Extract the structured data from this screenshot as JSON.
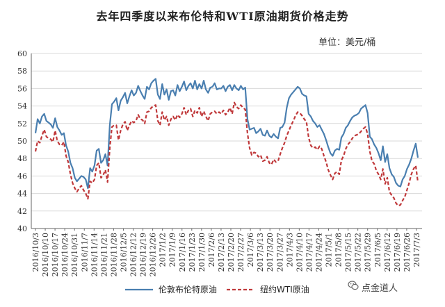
{
  "chart_data": {
    "type": "line",
    "title": "去年四季度以来布伦特和WTI原油期货价格走势",
    "unit_note": "单位：美元/桶",
    "ylim": [
      40,
      60
    ],
    "yticks": [
      40,
      42,
      44,
      46,
      48,
      50,
      52,
      54,
      56,
      58,
      60
    ],
    "xtick_labels": [
      "2016/10/3",
      "2016/10/10",
      "2016/10/17",
      "2016/10/24",
      "2016/10/31",
      "2016/11/7",
      "2016/11/14",
      "2016/11/21",
      "2016/11/28",
      "2016/12/5",
      "2016/12/12",
      "2016/12/19",
      "2016/12/26",
      "2017/1/2",
      "2017/1/9",
      "2017/1/16",
      "2017/1/23",
      "2017/1/30",
      "2017/2/6",
      "2017/2/13",
      "2017/2/20",
      "2017/2/27",
      "2017/3/6",
      "2017/3/13",
      "2017/3/20",
      "2017/3/27",
      "2017/4/3",
      "2017/4/10",
      "2017/4/17",
      "2017/4/24",
      "2017/5/1",
      "2017/5/8",
      "2017/5/15",
      "2017/5/22",
      "2017/5/29",
      "2017/6/5",
      "2017/6/12",
      "2017/6/19",
      "2017/6/26",
      "2017/7/3"
    ],
    "series": [
      {
        "name": "伦敦布伦特原油",
        "color": "#4a7fb0",
        "style": "solid",
        "values": [
          50.9,
          52.5,
          52.0,
          52.8,
          53.1,
          52.3,
          52.1,
          51.9,
          51.5,
          52.6,
          51.6,
          51.2,
          50.7,
          50.9,
          49.5,
          48.8,
          47.5,
          46.9,
          45.8,
          45.4,
          45.7,
          46.0,
          45.9,
          45.6,
          44.6,
          46.9,
          46.5,
          47.2,
          48.9,
          49.1,
          47.5,
          47.8,
          48.5,
          47.2,
          51.8,
          54.2,
          54.5,
          54.9,
          53.5,
          54.6,
          55.0,
          55.5,
          54.3,
          55.1,
          55.8,
          55.2,
          55.5,
          56.3,
          55.7,
          55.2,
          54.8,
          56.2,
          55.9,
          56.6,
          56.9,
          57.1,
          55.3,
          54.8,
          56.5,
          55.3,
          55.9,
          54.7,
          55.7,
          55.8,
          55.2,
          56.4,
          55.7,
          56.2,
          56.8,
          55.8,
          56.3,
          56.6,
          56.0,
          56.9,
          55.9,
          56.5,
          56.0,
          56.9,
          55.9,
          55.5,
          56.1,
          56.2,
          56.6,
          55.9,
          56.0,
          56.0,
          56.3,
          55.7,
          56.2,
          56.4,
          55.8,
          56.4,
          56.0,
          55.8,
          56.3,
          55.9,
          56.1,
          52.5,
          51.3,
          51.4,
          51.5,
          50.9,
          51.1,
          51.4,
          50.7,
          50.6,
          51.2,
          50.6,
          50.4,
          50.8,
          50.5,
          50.3,
          51.5,
          51.6,
          52.1,
          53.8,
          54.9,
          55.3,
          55.6,
          55.9,
          56.2,
          56.0,
          55.4,
          55.2,
          55.1,
          53.1,
          52.8,
          52.3,
          52.0,
          51.6,
          51.8,
          51.3,
          50.8,
          50.1,
          49.3,
          48.6,
          48.3,
          48.9,
          49.1,
          49.0,
          50.4,
          50.8,
          51.5,
          51.8,
          52.3,
          52.7,
          52.9,
          53.0,
          53.2,
          53.7,
          53.9,
          54.1,
          53.2,
          50.5,
          50.2,
          49.6,
          49.2,
          48.6,
          47.8,
          49.4,
          47.6,
          48.5,
          46.9,
          46.2,
          45.9,
          45.2,
          44.9,
          44.8,
          45.6,
          46.0,
          46.8,
          47.3,
          48.0,
          48.9,
          49.7,
          48.1
        ]
      },
      {
        "name": "纽约WTI原油",
        "color": "#c0393b",
        "style": "dashed",
        "values": [
          48.8,
          50.0,
          49.8,
          50.6,
          51.3,
          50.5,
          50.3,
          50.2,
          49.9,
          51.2,
          50.0,
          49.6,
          49.5,
          49.9,
          48.3,
          47.6,
          46.2,
          45.2,
          44.6,
          44.2,
          44.6,
          44.9,
          44.4,
          44.0,
          43.4,
          45.4,
          45.2,
          45.6,
          47.2,
          47.5,
          45.8,
          46.1,
          46.7,
          45.3,
          49.2,
          51.6,
          51.8,
          51.8,
          50.1,
          51.2,
          51.9,
          52.2,
          51.2,
          51.8,
          52.3,
          52.1,
          52.3,
          53.0,
          52.5,
          52.4,
          52.0,
          53.3,
          53.4,
          53.8,
          54.0,
          54.1,
          52.3,
          51.8,
          53.3,
          52.4,
          52.8,
          51.8,
          52.5,
          52.8,
          52.4,
          53.0,
          52.7,
          53.1,
          53.8,
          53.0,
          53.5,
          53.7,
          52.8,
          53.5,
          53.2,
          53.8,
          52.8,
          53.4,
          52.8,
          52.3,
          53.1,
          53.3,
          53.4,
          53.1,
          53.3,
          53.1,
          53.5,
          53.0,
          53.3,
          53.8,
          53.1,
          54.4,
          53.9,
          53.7,
          54.1,
          53.8,
          53.6,
          50.9,
          49.2,
          48.4,
          48.7,
          48.6,
          48.2,
          48.4,
          47.7,
          47.8,
          48.2,
          47.5,
          47.3,
          47.9,
          47.6,
          47.7,
          48.5,
          49.2,
          49.8,
          50.6,
          51.2,
          51.8,
          52.3,
          52.9,
          53.3,
          53.2,
          52.9,
          52.5,
          52.2,
          50.4,
          49.5,
          49.2,
          49.3,
          49.0,
          49.4,
          49.1,
          48.3,
          47.6,
          46.7,
          46.1,
          45.6,
          46.3,
          46.5,
          46.2,
          47.8,
          48.3,
          49.1,
          49.6,
          49.9,
          50.3,
          50.6,
          50.7,
          50.8,
          51.1,
          51.4,
          51.6,
          50.8,
          48.8,
          47.7,
          47.4,
          46.6,
          46.2,
          45.6,
          46.8,
          45.1,
          45.8,
          44.2,
          43.8,
          43.5,
          42.9,
          42.6,
          42.7,
          43.2,
          43.6,
          44.4,
          45.2,
          46.2,
          46.8,
          47.2,
          45.3
        ]
      }
    ]
  },
  "watermark": {
    "text": "点金道人",
    "icon": "wechat-icon"
  }
}
